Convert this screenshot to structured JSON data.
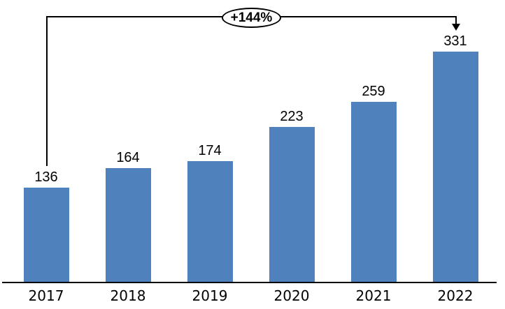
{
  "chart_data": {
    "type": "bar",
    "title": "",
    "xlabel": "",
    "ylabel": "",
    "categories": [
      "2017",
      "2018",
      "2019",
      "2020",
      "2021",
      "2022"
    ],
    "values": [
      136,
      164,
      174,
      223,
      259,
      331
    ],
    "ylim": [
      0,
      400
    ],
    "gridlines": false,
    "legend": "none",
    "bar_color": "#4F81BD",
    "line_color": "#000000",
    "label_color": "#000000",
    "annotation": {
      "label": "+144%",
      "from_category": "2017",
      "to_category": "2022",
      "shape": "ellipse"
    }
  }
}
